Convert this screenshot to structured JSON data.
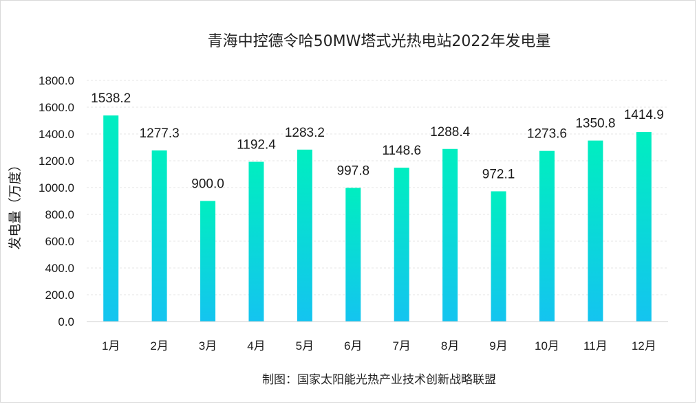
{
  "chart_data": {
    "type": "bar",
    "title": "青海中控德令哈50MW塔式光热电站2022年发电量",
    "ylabel": "发电量（万度）",
    "xlabel": "",
    "categories": [
      "1月",
      "2月",
      "3月",
      "4月",
      "5月",
      "6月",
      "7月",
      "8月",
      "9月",
      "10月",
      "11月",
      "12月"
    ],
    "values": [
      1538.2,
      1277.3,
      900.0,
      1192.4,
      1283.2,
      997.8,
      1148.6,
      1288.4,
      972.1,
      1273.6,
      1350.8,
      1414.9
    ],
    "data_labels": [
      "1538.2",
      "1277.3",
      "900.0",
      "1192.4",
      "1283.2",
      "997.8",
      "1148.6",
      "1288.4",
      "972.1",
      "1273.6",
      "1350.8",
      "1414.9"
    ],
    "ylim": [
      0,
      1800
    ],
    "y_ticks": [
      "0.0",
      "200.0",
      "400.0",
      "600.0",
      "800.0",
      "1000.0",
      "1200.0",
      "1400.0",
      "1600.0",
      "1800.0"
    ],
    "grid": true,
    "legend": "none",
    "colors": {
      "bar_top": "#00eec0",
      "bar_bottom": "#14c4f0"
    }
  },
  "source_text": "制图：国家太阳能光热产业技术创新战略联盟"
}
